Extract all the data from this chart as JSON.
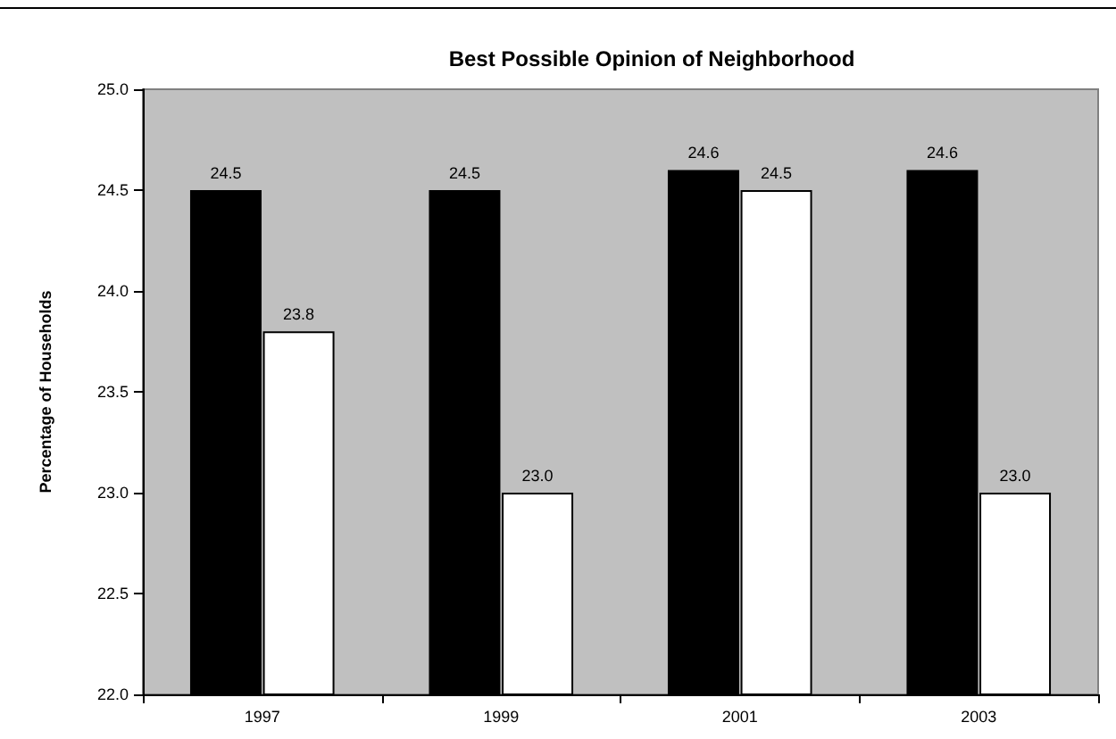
{
  "chart_data": {
    "type": "bar",
    "title": "Best Possible Opinion of Neighborhood",
    "ylabel": "Percentage of Households",
    "categories": [
      "1997",
      "1999",
      "2001",
      "2003"
    ],
    "series": [
      {
        "color": "#000000",
        "values": [
          24.5,
          24.5,
          24.6,
          24.6
        ],
        "value_labels": [
          "24.5",
          "24.5",
          "24.6",
          "24.6"
        ]
      },
      {
        "color": "#ffffff",
        "values": [
          23.8,
          23.0,
          24.5,
          23.0
        ],
        "value_labels": [
          "23.8",
          "23.0",
          "24.5",
          "23.0"
        ]
      }
    ],
    "ylim": [
      22.0,
      25.0
    ],
    "yticks": [
      {
        "value": 22,
        "label": "22.0"
      },
      {
        "value": 22.5,
        "label": "22.5"
      },
      {
        "value": 23,
        "label": "23.0"
      },
      {
        "value": 23.5,
        "label": "23.5"
      },
      {
        "value": 24,
        "label": "24.0"
      },
      {
        "value": 24.5,
        "label": "24.5"
      },
      {
        "value": 25,
        "label": "25.0"
      }
    ],
    "grid": false
  }
}
